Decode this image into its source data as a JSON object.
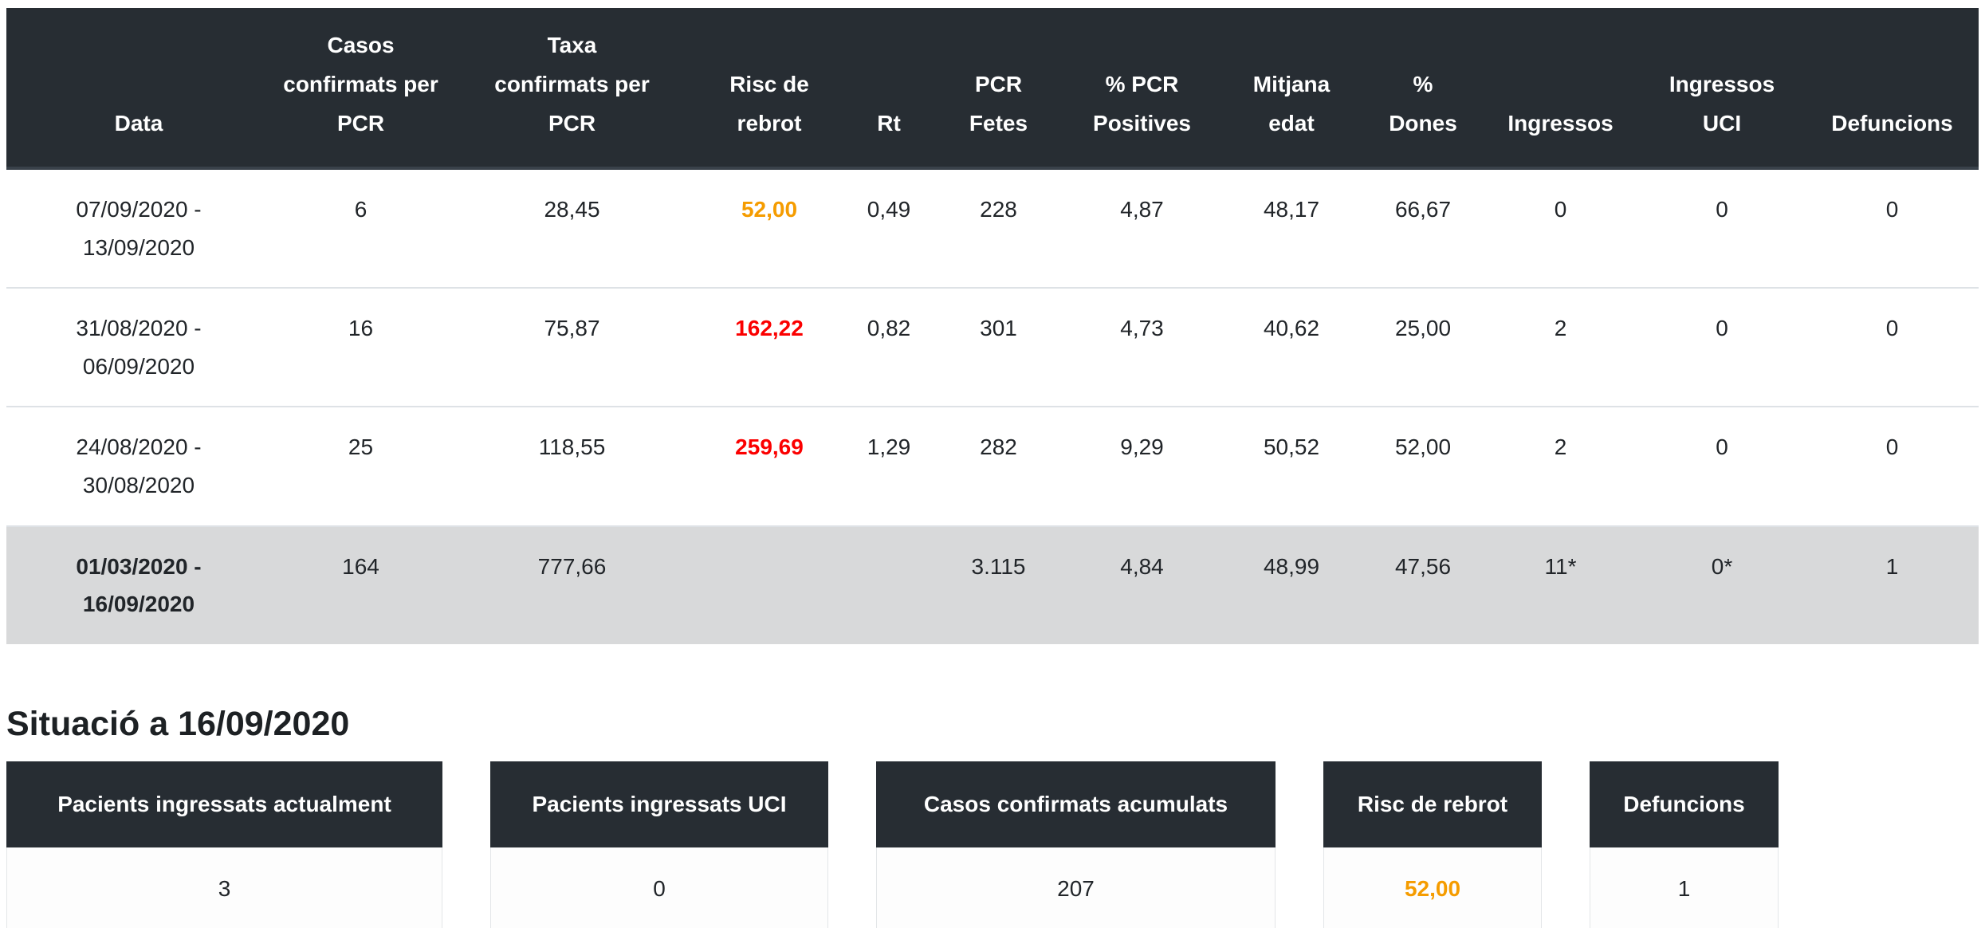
{
  "colors": {
    "header_bg": "#272d33",
    "total_row_bg": "#d8d9da",
    "risk_orange": "#f59c00",
    "risk_red": "#fb0000"
  },
  "table": {
    "columns": [
      {
        "key": "data",
        "label": "Data"
      },
      {
        "key": "casos",
        "label": "Casos\nconfirmats per\nPCR"
      },
      {
        "key": "taxa",
        "label": "Taxa\nconfirmats per\nPCR"
      },
      {
        "key": "risc",
        "label": "Risc de\nrebrot"
      },
      {
        "key": "rt",
        "label": "Rt"
      },
      {
        "key": "fetes",
        "label": "PCR\nFetes"
      },
      {
        "key": "pcrpos",
        "label": "% PCR\nPositives"
      },
      {
        "key": "mitjana",
        "label": "Mitjana\nedat"
      },
      {
        "key": "dones",
        "label": "%\nDones"
      },
      {
        "key": "ingressos",
        "label": "Ingressos"
      },
      {
        "key": "uci",
        "label": "Ingressos\nUCI"
      },
      {
        "key": "defuncions",
        "label": "Defuncions"
      }
    ],
    "rows": [
      {
        "cells": [
          "07/09/2020 -\n13/09/2020",
          "6",
          "28,45",
          "52,00",
          "0,49",
          "228",
          "4,87",
          "48,17",
          "66,67",
          "0",
          "0",
          "0"
        ],
        "risc_color": "orange"
      },
      {
        "cells": [
          "31/08/2020 -\n06/09/2020",
          "16",
          "75,87",
          "162,22",
          "0,82",
          "301",
          "4,73",
          "40,62",
          "25,00",
          "2",
          "0",
          "0"
        ],
        "risc_color": "red"
      },
      {
        "cells": [
          "24/08/2020 -\n30/08/2020",
          "25",
          "118,55",
          "259,69",
          "1,29",
          "282",
          "9,29",
          "50,52",
          "52,00",
          "2",
          "0",
          "0"
        ],
        "risc_color": "red"
      },
      {
        "cells": [
          "01/03/2020 -\n16/09/2020",
          "164",
          "777,66",
          "",
          "",
          "3.115",
          "4,84",
          "48,99",
          "47,56",
          "11*",
          "0*",
          "1"
        ],
        "risc_color": ""
      }
    ]
  },
  "situation": {
    "title": "Situació a 16/09/2020",
    "cards": [
      {
        "label": "Pacients ingressats actualment",
        "value": "3",
        "value_color": ""
      },
      {
        "label": "Pacients ingressats UCI",
        "value": "0",
        "value_color": ""
      },
      {
        "label": "Casos confirmats acumulats",
        "value": "207",
        "value_color": ""
      },
      {
        "label": "Risc de rebrot",
        "value": "52,00",
        "value_color": "orange"
      },
      {
        "label": "Defuncions",
        "value": "1",
        "value_color": ""
      }
    ]
  }
}
